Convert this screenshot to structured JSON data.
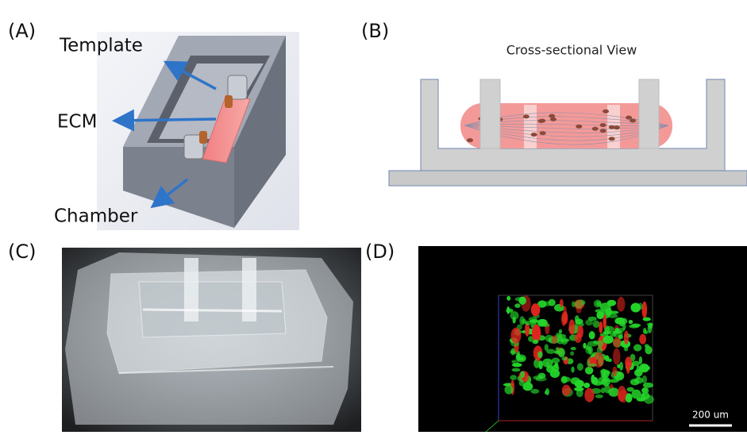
{
  "panels": [
    {
      "label": "(A)",
      "annotations": [
        "Template",
        "ECM",
        "Chamber"
      ]
    },
    {
      "label": "(B)",
      "title": "Cross-sectional View"
    },
    {
      "label": "(C)"
    },
    {
      "label": "(D)",
      "scale_bar": "200 um"
    }
  ]
}
